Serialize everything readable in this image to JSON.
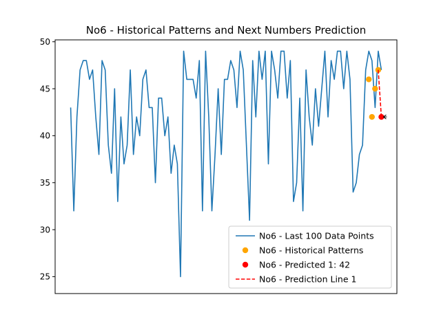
{
  "chart_data": {
    "type": "line",
    "title": "No6 - Historical Patterns and Next Numbers Prediction",
    "xlabel": "",
    "ylabel": "",
    "x_tick_labels_shown": false,
    "ylim": [
      23.2,
      50.2
    ],
    "yticks": [
      25,
      30,
      35,
      40,
      45,
      50
    ],
    "grid": false,
    "legend_position": "lower-right",
    "series": [
      {
        "name": "No6 - Last 100 Data Points",
        "type": "line",
        "color": "#1f77b4",
        "x": [
          0,
          1,
          2,
          3,
          4,
          5,
          6,
          7,
          8,
          9,
          10,
          11,
          12,
          13,
          14,
          15,
          16,
          17,
          18,
          19,
          20,
          21,
          22,
          23,
          24,
          25,
          26,
          27,
          28,
          29,
          30,
          31,
          32,
          33,
          34,
          35,
          36,
          37,
          38,
          39,
          40,
          41,
          42,
          43,
          44,
          45,
          46,
          47,
          48,
          49,
          50,
          51,
          52,
          53,
          54,
          55,
          56,
          57,
          58,
          59,
          60,
          61,
          62,
          63,
          64,
          65,
          66,
          67,
          68,
          69,
          70,
          71,
          72,
          73,
          74,
          75,
          76,
          77,
          78,
          79,
          80,
          81,
          82,
          83,
          84,
          85,
          86,
          87,
          88,
          89,
          90,
          91,
          92,
          93,
          94,
          95,
          96,
          97,
          98,
          99
        ],
        "values": [
          43,
          32,
          42,
          47,
          48,
          48,
          46,
          47,
          42,
          38,
          48,
          47,
          39,
          36,
          45,
          33,
          42,
          37,
          39,
          47,
          38,
          42,
          40,
          46,
          47,
          43,
          43,
          35,
          44,
          44,
          40,
          42,
          36,
          39,
          37,
          25,
          49,
          46,
          46,
          46,
          44,
          48,
          32,
          49,
          42,
          32,
          38,
          45,
          38,
          46,
          46,
          48,
          47,
          43,
          49,
          47,
          39,
          31,
          48,
          42,
          49,
          46,
          49,
          37,
          49,
          47,
          44,
          49,
          49,
          44,
          48,
          33,
          35,
          44,
          32,
          47,
          42,
          39,
          45,
          41,
          45,
          49,
          42,
          48,
          46,
          49,
          49,
          45,
          49,
          46,
          34,
          35,
          38,
          39,
          47,
          49,
          48,
          43,
          49,
          47
        ]
      },
      {
        "name": "No6 - Historical Patterns",
        "type": "scatter",
        "color": "#ffa500",
        "x": [
          95,
          96,
          97,
          98
        ],
        "values": [
          46,
          42,
          45,
          47
        ]
      },
      {
        "name": "No6 - Predicted 1: 42",
        "type": "scatter",
        "color": "#ff0000",
        "x": [
          99
        ],
        "values": [
          42
        ]
      },
      {
        "name": "No6 - Prediction Line 1",
        "type": "line",
        "style": "dashed",
        "color": "#ff0000",
        "x": [
          98,
          99
        ],
        "values": [
          47,
          42
        ]
      }
    ]
  }
}
